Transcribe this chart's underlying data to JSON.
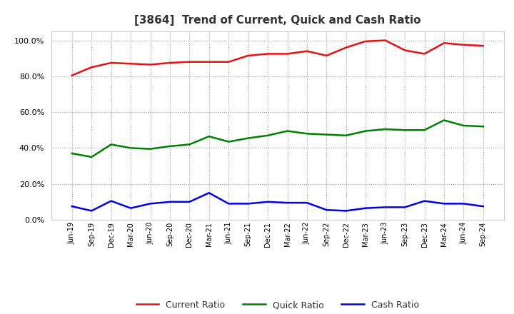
{
  "title": "[3864]  Trend of Current, Quick and Cash Ratio",
  "x_labels": [
    "Jun-19",
    "Sep-19",
    "Dec-19",
    "Mar-20",
    "Jun-20",
    "Sep-20",
    "Dec-20",
    "Mar-21",
    "Jun-21",
    "Sep-21",
    "Dec-21",
    "Mar-22",
    "Jun-22",
    "Sep-22",
    "Dec-22",
    "Mar-23",
    "Jun-23",
    "Sep-23",
    "Dec-23",
    "Mar-24",
    "Jun-24",
    "Sep-24"
  ],
  "current_ratio": [
    80.5,
    85.0,
    87.5,
    87.0,
    86.5,
    87.5,
    88.0,
    88.0,
    88.0,
    91.5,
    92.5,
    92.5,
    94.0,
    91.5,
    96.0,
    99.5,
    100.0,
    94.5,
    92.5,
    98.5,
    97.5,
    97.0
  ],
  "quick_ratio": [
    37.0,
    35.0,
    42.0,
    40.0,
    39.5,
    41.0,
    42.0,
    46.5,
    43.5,
    45.5,
    47.0,
    49.5,
    48.0,
    47.5,
    47.0,
    49.5,
    50.5,
    50.0,
    50.0,
    55.5,
    52.5,
    52.0
  ],
  "cash_ratio": [
    7.5,
    5.0,
    10.5,
    6.5,
    9.0,
    10.0,
    10.0,
    15.0,
    9.0,
    9.0,
    10.0,
    9.5,
    9.5,
    5.5,
    5.0,
    6.5,
    7.0,
    7.0,
    10.5,
    9.0,
    9.0,
    7.5
  ],
  "current_color": "#e81010",
  "quick_color": "#008000",
  "cash_color": "#0000e8",
  "ylim": [
    0,
    105
  ],
  "yticks": [
    0,
    20,
    40,
    60,
    80,
    100
  ],
  "background_color": "#ffffff",
  "grid_color": "#999999",
  "legend_labels": [
    "Current Ratio",
    "Quick Ratio",
    "Cash Ratio"
  ],
  "title_color": "#333333"
}
